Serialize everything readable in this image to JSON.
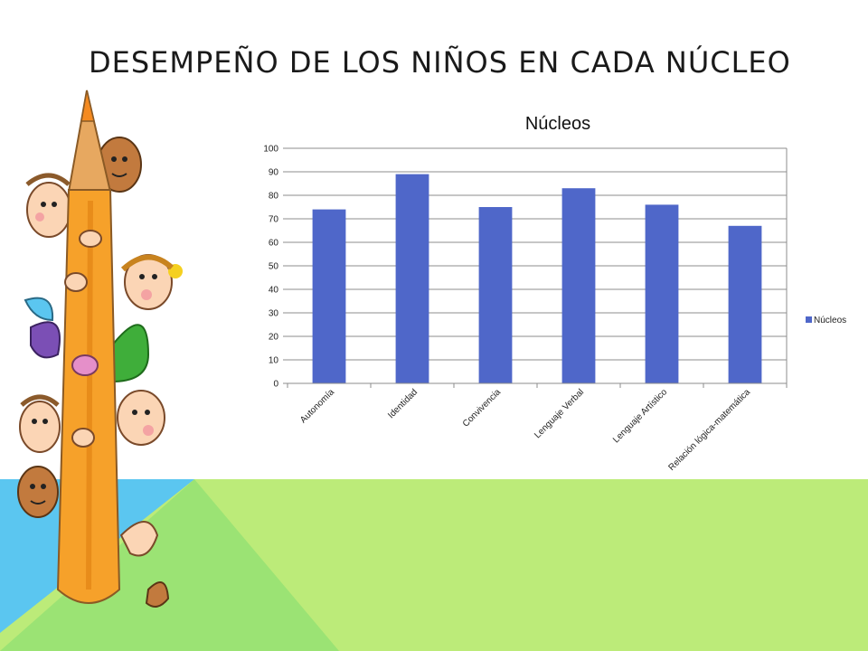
{
  "slide": {
    "title": "DESEMPEÑO DE LOS NIÑOS EN CADA NÚCLEO"
  },
  "illustration": {
    "description_icon": "pencil-with-children-icon"
  },
  "colors": {
    "bar": "#4F67C9",
    "grid": "#8c8c8c",
    "bg_light_green": "#BCEB79",
    "bg_mid_green": "#9BE374",
    "bg_blue": "#5BC6F0",
    "pencil": "#F6A12A"
  },
  "chart_data": {
    "type": "bar",
    "title": "Núcleos",
    "categories": [
      "Autonomía",
      "Identidad",
      "Convivencia",
      "Lenguaje Verbal",
      "Lenguaje Artístico",
      "Relación lógica-matemática"
    ],
    "series": [
      {
        "name": "Núcleos",
        "values": [
          74,
          89,
          75,
          83,
          76,
          67
        ]
      }
    ],
    "ylim": [
      0,
      100
    ],
    "yticks": [
      0,
      10,
      20,
      30,
      40,
      50,
      60,
      70,
      80,
      90,
      100
    ],
    "grid": true,
    "legend": "right"
  }
}
